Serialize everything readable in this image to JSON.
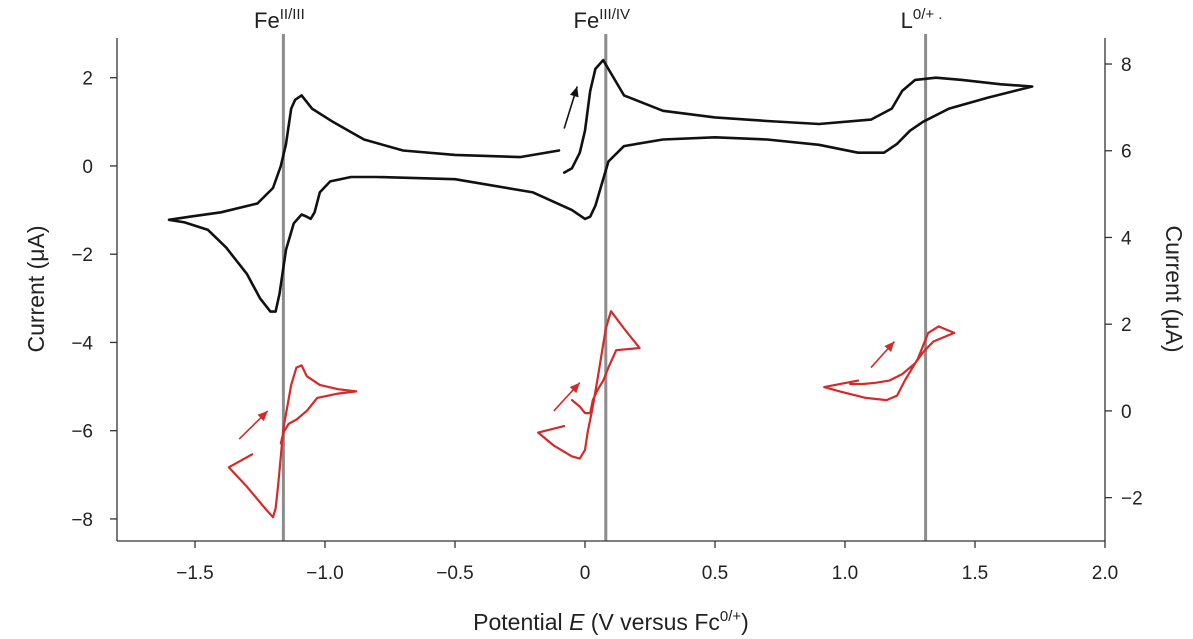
{
  "chart_data": {
    "type": "line",
    "xlabel": {
      "text": "Potential ",
      "italic": "E",
      "rest": " (V versus Fc",
      "sup": "0/+",
      "close": ")"
    },
    "ylabel_left": "Current (μA)",
    "ylabel_right": "Current (μA)",
    "x_ticks": [
      -1.5,
      -1.0,
      -0.5,
      0,
      0.5,
      1.0,
      1.5,
      2.0
    ],
    "x_tick_labels": [
      "−1.5",
      "−1.0",
      "−0.5",
      "0",
      "0.5",
      "1.0",
      "1.5",
      "2.0"
    ],
    "xlim": [
      -1.8,
      2.0
    ],
    "left_axis": {
      "ylim": [
        -8.5,
        2.9
      ],
      "ticks": [
        2,
        0,
        -2,
        -4,
        -6,
        -8
      ],
      "tick_labels": [
        "2",
        "0",
        "−2",
        "−4",
        "−6",
        "−8"
      ]
    },
    "right_axis": {
      "ylim": [
        -3,
        8.6
      ],
      "ticks": [
        8,
        6,
        4,
        2,
        0,
        -2
      ],
      "tick_labels": [
        "8",
        "6",
        "4",
        "2",
        "0",
        "−2"
      ]
    },
    "reference_lines": [
      {
        "x": -1.16,
        "label": "Fe",
        "sup": "II/III"
      },
      {
        "x": 0.08,
        "label": "Fe",
        "sup": "III/IV"
      },
      {
        "x": 1.31,
        "label": "L",
        "sup": "0/+ ."
      }
    ],
    "colors": {
      "black_trace": "#111111",
      "red_trace": "#d42a2a",
      "ref_line": "#8c8c8c",
      "axis": "#333333"
    },
    "series": [
      {
        "color": "black",
        "axis": "left",
        "x": [
          -0.1,
          -0.25,
          -0.5,
          -0.7,
          -0.85,
          -0.97,
          -1.05,
          -1.09,
          -1.115,
          -1.13,
          -1.15,
          -1.17,
          -1.2,
          -1.26,
          -1.4,
          -1.52,
          -1.6,
          -1.54,
          -1.45,
          -1.38,
          -1.3,
          -1.25,
          -1.21,
          -1.19,
          -1.175,
          -1.15,
          -1.12,
          -1.09,
          -1.07,
          -1.055,
          -1.04,
          -1.02,
          -0.98,
          -0.9,
          -0.8,
          -0.5,
          -0.2,
          -0.05,
          0.0,
          0.02,
          0.04,
          0.06,
          0.09,
          0.15,
          0.3,
          0.5,
          0.7,
          0.9,
          1.05,
          1.15,
          1.2,
          1.25,
          1.3,
          1.4,
          1.55,
          1.72,
          1.6,
          1.45,
          1.35,
          1.27,
          1.22,
          1.18,
          1.1,
          0.9,
          0.7,
          0.5,
          0.3,
          0.15,
          0.07,
          0.04,
          0.02,
          0.0,
          -0.02,
          -0.05,
          -0.08
        ],
        "y": [
          0.35,
          0.2,
          0.25,
          0.35,
          0.6,
          1.0,
          1.3,
          1.6,
          1.5,
          1.3,
          0.5,
          0.0,
          -0.5,
          -0.85,
          -1.05,
          -1.15,
          -1.22,
          -1.28,
          -1.45,
          -1.85,
          -2.45,
          -3.0,
          -3.3,
          -3.3,
          -2.9,
          -1.9,
          -1.3,
          -1.1,
          -1.15,
          -1.2,
          -1.05,
          -0.6,
          -0.35,
          -0.25,
          -0.25,
          -0.3,
          -0.6,
          -1.0,
          -1.2,
          -1.15,
          -0.9,
          -0.5,
          0.1,
          0.45,
          0.6,
          0.65,
          0.6,
          0.48,
          0.3,
          0.3,
          0.5,
          0.8,
          1.0,
          1.3,
          1.55,
          1.8,
          1.85,
          1.95,
          2.0,
          1.95,
          1.7,
          1.3,
          1.05,
          0.95,
          1.02,
          1.1,
          1.25,
          1.6,
          2.4,
          2.2,
          1.7,
          0.8,
          0.3,
          -0.05,
          -0.15
        ]
      },
      {
        "color": "red",
        "axis": "right",
        "segments": [
          {
            "x": [
              -1.28,
              -1.37,
              -1.3,
              -1.23,
              -1.2,
              -1.19,
              -1.18,
              -1.16,
              -1.13,
              -1.11,
              -1.09,
              -1.07,
              -1.02,
              -0.95,
              -0.88,
              -0.95,
              -1.03,
              -1.07,
              -1.11,
              -1.14,
              -1.16,
              -1.17
            ],
            "y": [
              -1.0,
              -1.3,
              -1.75,
              -2.25,
              -2.45,
              -2.25,
              -1.7,
              -0.4,
              0.6,
              1.0,
              1.05,
              0.8,
              0.6,
              0.5,
              0.45,
              0.4,
              0.3,
              0.0,
              -0.2,
              -0.3,
              -0.5,
              -0.75
            ]
          },
          {
            "x": [
              -0.08,
              -0.18,
              -0.12,
              -0.05,
              -0.02,
              0.0,
              0.01,
              0.03,
              0.05,
              0.08,
              0.1,
              0.15,
              0.21,
              0.12,
              0.09,
              0.07,
              0.05,
              0.03,
              0.02,
              0.0,
              -0.02,
              -0.05
            ],
            "y": [
              -0.35,
              -0.5,
              -0.8,
              -1.05,
              -1.1,
              -0.9,
              -0.5,
              0.1,
              0.8,
              1.9,
              2.3,
              1.9,
              1.45,
              1.4,
              1.0,
              0.7,
              0.5,
              0.25,
              -0.05,
              -0.05,
              0.1,
              0.25
            ]
          },
          {
            "x": [
              1.05,
              0.92,
              0.98,
              1.08,
              1.16,
              1.2,
              1.23,
              1.28,
              1.32,
              1.36,
              1.42,
              1.34,
              1.3,
              1.27,
              1.22,
              1.17,
              1.12,
              1.07,
              1.02
            ],
            "y": [
              0.7,
              0.55,
              0.45,
              0.3,
              0.25,
              0.35,
              0.7,
              1.2,
              1.8,
              1.95,
              1.8,
              1.6,
              1.35,
              1.1,
              0.85,
              0.7,
              0.65,
              0.62,
              0.62
            ]
          }
        ]
      }
    ],
    "arrows": [
      {
        "color": "black",
        "axis": "left",
        "from": [
          -0.08,
          0.85
        ],
        "to": [
          -0.03,
          1.8
        ]
      },
      {
        "color": "red",
        "axis": "right",
        "from": [
          -1.33,
          -0.65
        ],
        "to": [
          -1.22,
          0.0
        ]
      },
      {
        "color": "red",
        "axis": "right",
        "from": [
          -0.12,
          0.0
        ],
        "to": [
          -0.02,
          0.65
        ]
      },
      {
        "color": "red",
        "axis": "right",
        "from": [
          1.1,
          1.0
        ],
        "to": [
          1.19,
          1.6
        ]
      }
    ]
  }
}
